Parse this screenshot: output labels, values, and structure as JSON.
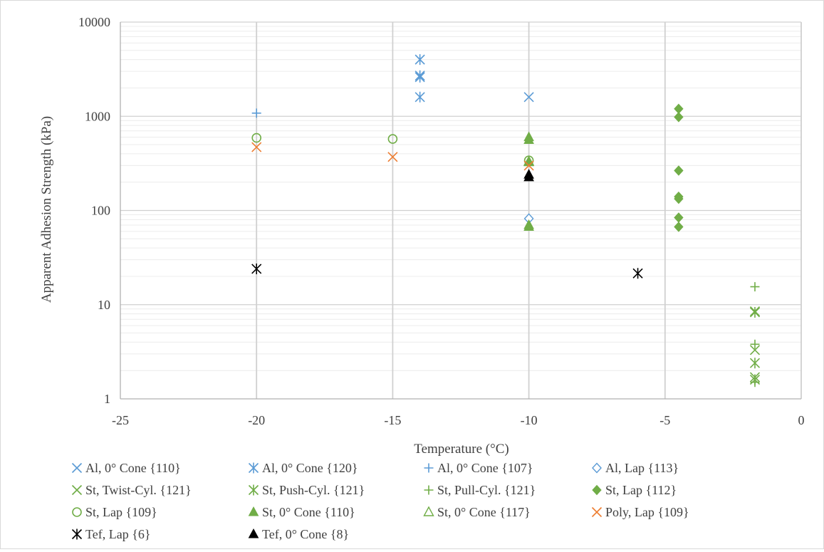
{
  "chart_data": {
    "type": "scatter",
    "title": "",
    "xlabel": "Temperature (°C)",
    "ylabel": "Apparent Adhesion Strength (kPa)",
    "xlim": [
      -25,
      0
    ],
    "ylim": [
      1,
      10000
    ],
    "yscale": "log",
    "x_ticks": [
      -25,
      -20,
      -15,
      -10,
      -5,
      0
    ],
    "x_tick_labels": [
      "-25",
      "-20",
      "-15",
      "-10",
      "-5",
      "0"
    ],
    "y_ticks": [
      1,
      10,
      100,
      1000,
      10000
    ],
    "y_tick_labels": [
      "1",
      "10",
      "100",
      "1000",
      "10000"
    ],
    "grid": true,
    "legend_position": "bottom",
    "series": [
      {
        "name": "Al, 0° Cone {110}",
        "marker": "x",
        "color": "#5b9bd5",
        "points": [
          {
            "x": -10,
            "y": 1600
          }
        ]
      },
      {
        "name": "Al, 0° Cone {120}",
        "marker": "star",
        "color": "#5b9bd5",
        "points": [
          {
            "x": -14,
            "y": 4000
          },
          {
            "x": -14,
            "y": 2700
          },
          {
            "x": -14,
            "y": 2600
          },
          {
            "x": -14,
            "y": 1600
          }
        ]
      },
      {
        "name": "Al, 0° Cone {107}",
        "marker": "plus",
        "color": "#5b9bd5",
        "points": [
          {
            "x": -20,
            "y": 1080
          }
        ]
      },
      {
        "name": "Al, Lap {113}",
        "marker": "diamond-open",
        "color": "#5b9bd5",
        "points": [
          {
            "x": -10,
            "y": 82
          }
        ]
      },
      {
        "name": "St, Twist-Cyl. {121}",
        "marker": "x",
        "color": "#70ad47",
        "points": [
          {
            "x": -1.7,
            "y": 8.5
          },
          {
            "x": -1.7,
            "y": 3.3
          },
          {
            "x": -1.7,
            "y": 1.7
          }
        ]
      },
      {
        "name": "St, Push-Cyl. {121}",
        "marker": "star",
        "color": "#70ad47",
        "points": [
          {
            "x": -1.7,
            "y": 8.3
          },
          {
            "x": -1.7,
            "y": 2.4
          },
          {
            "x": -1.7,
            "y": 1.6
          }
        ]
      },
      {
        "name": "St, Pull-Cyl. {121}",
        "marker": "plus",
        "color": "#70ad47",
        "points": [
          {
            "x": -1.7,
            "y": 15.5
          },
          {
            "x": -1.7,
            "y": 3.8
          },
          {
            "x": -1.7,
            "y": 1.5
          }
        ]
      },
      {
        "name": "St, Lap {112}",
        "marker": "diamond",
        "color": "#70ad47",
        "points": [
          {
            "x": -4.5,
            "y": 1200
          },
          {
            "x": -4.5,
            "y": 980
          },
          {
            "x": -4.5,
            "y": 265
          },
          {
            "x": -4.5,
            "y": 140
          },
          {
            "x": -4.5,
            "y": 133
          },
          {
            "x": -4.5,
            "y": 84
          },
          {
            "x": -4.5,
            "y": 67
          }
        ]
      },
      {
        "name": "St, Lap {109}",
        "marker": "circle-open",
        "color": "#70ad47",
        "points": [
          {
            "x": -20,
            "y": 590
          },
          {
            "x": -15,
            "y": 575
          },
          {
            "x": -10,
            "y": 340
          }
        ]
      },
      {
        "name": "St, 0° Cone {110}",
        "marker": "triangle",
        "color": "#70ad47",
        "points": [
          {
            "x": -10,
            "y": 600
          },
          {
            "x": -10,
            "y": 560
          },
          {
            "x": -10,
            "y": 325
          },
          {
            "x": -10,
            "y": 70
          },
          {
            "x": -10,
            "y": 67
          }
        ]
      },
      {
        "name": "St, 0° Cone {117}",
        "marker": "triangle-open",
        "color": "#70ad47",
        "points": [
          {
            "x": -10,
            "y": 330
          }
        ]
      },
      {
        "name": "Poly, Lap {109}",
        "marker": "x",
        "color": "#ed7d31",
        "points": [
          {
            "x": -20,
            "y": 470
          },
          {
            "x": -15,
            "y": 370
          },
          {
            "x": -10,
            "y": 300
          }
        ]
      },
      {
        "name": "Tef, Lap {6}",
        "marker": "star",
        "color": "#000000",
        "points": [
          {
            "x": -20,
            "y": 24
          },
          {
            "x": -6,
            "y": 21.5
          }
        ]
      },
      {
        "name": "Tef, 0° Cone {8}",
        "marker": "triangle",
        "color": "#000000",
        "points": [
          {
            "x": -10,
            "y": 240
          },
          {
            "x": -10,
            "y": 225
          }
        ]
      }
    ]
  }
}
